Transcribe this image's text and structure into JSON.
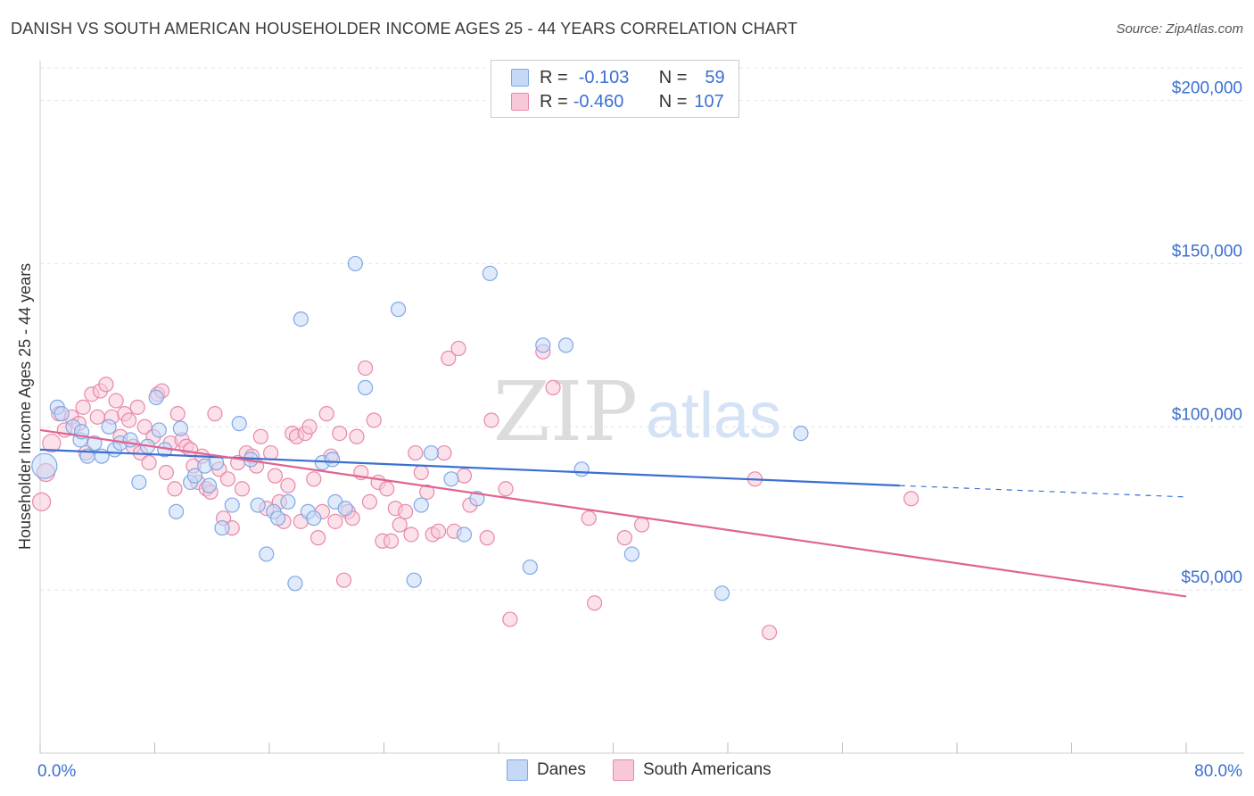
{
  "title": "DANISH VS SOUTH AMERICAN HOUSEHOLDER INCOME AGES 25 - 44 YEARS CORRELATION CHART",
  "source": "Source: ZipAtlas.com",
  "watermark": {
    "zip": "ZIP",
    "atlas": "atlas"
  },
  "legend": {
    "rows": [
      {
        "r_label": "R =",
        "r_value": "-0.103",
        "n_label": "N =",
        "n_value": "59",
        "color": "#7fa8e6",
        "fill": "#c5d8f5"
      },
      {
        "r_label": "R =",
        "r_value": "-0.460",
        "n_label": "N =",
        "n_value": "107",
        "color": "#e888a8",
        "fill": "#f8c8d8"
      }
    ]
  },
  "bottom_legend": [
    {
      "label": "Danes",
      "color": "#7fa8e6",
      "fill": "#c5d8f5"
    },
    {
      "label": "South Americans",
      "color": "#e888a8",
      "fill": "#f8c8d8"
    }
  ],
  "chart_data": {
    "type": "scatter",
    "title": "DANISH VS SOUTH AMERICAN HOUSEHOLDER INCOME AGES 25 - 44 YEARS CORRELATION CHART",
    "xlabel": "",
    "ylabel": "Householder Income Ages 25 - 44 years",
    "xlim": [
      0,
      80
    ],
    "ylim": [
      0,
      210000
    ],
    "x_tick_labels": [
      "0.0%",
      "80.0%"
    ],
    "y_ticks": [
      50000,
      100000,
      150000,
      200000
    ],
    "y_tick_labels": [
      "$50,000",
      "$100,000",
      "$150,000",
      "$200,000"
    ],
    "grid": true,
    "legend_position": "top-center",
    "series": [
      {
        "name": "Danes",
        "color": "#3b6fd1",
        "point_stroke": "#7fa8e6",
        "point_fill": "#c5d8f5",
        "trend": {
          "x": [
            0,
            60,
            80
          ],
          "y": [
            93000,
            82000,
            78500
          ],
          "solid_until": 60
        },
        "points": [
          [
            0.3,
            88000,
            14
          ],
          [
            1.2,
            106000,
            8
          ],
          [
            1.5,
            104000,
            8
          ],
          [
            2.3,
            100000,
            8
          ],
          [
            2.8,
            96000,
            8
          ],
          [
            2.9,
            98500,
            8
          ],
          [
            3.3,
            91000,
            8
          ],
          [
            3.8,
            95000,
            8
          ],
          [
            4.3,
            91000,
            8
          ],
          [
            4.8,
            100000,
            8
          ],
          [
            5.2,
            93000,
            8
          ],
          [
            5.6,
            95000,
            8
          ],
          [
            6.3,
            96000,
            8
          ],
          [
            6.9,
            83000,
            8
          ],
          [
            7.5,
            94000,
            8
          ],
          [
            8.1,
            109000,
            8
          ],
          [
            8.3,
            99000,
            8
          ],
          [
            8.7,
            93000,
            8
          ],
          [
            9.5,
            74000,
            8
          ],
          [
            9.8,
            99500,
            8
          ],
          [
            10.5,
            83000,
            8
          ],
          [
            10.8,
            85000,
            8
          ],
          [
            11.5,
            88000,
            8
          ],
          [
            11.8,
            82000,
            8
          ],
          [
            12.3,
            89000,
            8
          ],
          [
            12.7,
            69000,
            8
          ],
          [
            13.4,
            76000,
            8
          ],
          [
            13.9,
            101000,
            8
          ],
          [
            14.7,
            90000,
            8
          ],
          [
            15.2,
            76000,
            8
          ],
          [
            15.8,
            61000,
            8
          ],
          [
            16.3,
            74000,
            8
          ],
          [
            16.6,
            72000,
            8
          ],
          [
            17.3,
            77000,
            8
          ],
          [
            17.8,
            52000,
            8
          ],
          [
            18.2,
            133000,
            8
          ],
          [
            18.7,
            74000,
            8
          ],
          [
            19.1,
            72000,
            8
          ],
          [
            19.7,
            89000,
            8
          ],
          [
            20.4,
            90000,
            8
          ],
          [
            20.6,
            77000,
            8
          ],
          [
            21.3,
            75000,
            8
          ],
          [
            22.0,
            150000,
            8
          ],
          [
            22.7,
            112000,
            8
          ],
          [
            25.0,
            136000,
            8
          ],
          [
            26.1,
            53000,
            8
          ],
          [
            26.6,
            76000,
            8
          ],
          [
            27.3,
            92000,
            8
          ],
          [
            28.7,
            84000,
            8
          ],
          [
            29.6,
            67000,
            8
          ],
          [
            30.5,
            78000,
            8
          ],
          [
            31.4,
            147000,
            8
          ],
          [
            34.2,
            57000,
            8
          ],
          [
            35.1,
            125000,
            8
          ],
          [
            36.7,
            125000,
            8
          ],
          [
            37.8,
            87000,
            8
          ],
          [
            41.3,
            61000,
            8
          ],
          [
            47.6,
            49000,
            8
          ],
          [
            53.1,
            98000,
            8
          ]
        ]
      },
      {
        "name": "South Americans",
        "color": "#e0648e",
        "point_stroke": "#e888a8",
        "point_fill": "#f8c8d8",
        "trend": {
          "x": [
            0,
            80
          ],
          "y": [
            99000,
            48000
          ],
          "solid_until": 80
        },
        "points": [
          [
            0.1,
            77000,
            10
          ],
          [
            0.4,
            86000,
            10
          ],
          [
            0.8,
            95000,
            10
          ],
          [
            1.3,
            104000,
            8
          ],
          [
            1.7,
            99000,
            8
          ],
          [
            2.2,
            103000,
            8
          ],
          [
            2.7,
            101000,
            8
          ],
          [
            3.0,
            106000,
            8
          ],
          [
            3.2,
            92000,
            8
          ],
          [
            3.6,
            110000,
            8
          ],
          [
            4.0,
            103000,
            8
          ],
          [
            4.2,
            111000,
            8
          ],
          [
            4.6,
            113000,
            8
          ],
          [
            5.0,
            103000,
            8
          ],
          [
            5.3,
            108000,
            8
          ],
          [
            5.6,
            97000,
            8
          ],
          [
            5.9,
            104000,
            8
          ],
          [
            6.2,
            102000,
            8
          ],
          [
            6.5,
            94000,
            8
          ],
          [
            6.8,
            106000,
            8
          ],
          [
            7.0,
            92000,
            8
          ],
          [
            7.3,
            100000,
            8
          ],
          [
            7.6,
            89000,
            8
          ],
          [
            7.9,
            97000,
            8
          ],
          [
            8.2,
            110000,
            8
          ],
          [
            8.5,
            111000,
            8
          ],
          [
            8.8,
            86000,
            8
          ],
          [
            9.1,
            95000,
            8
          ],
          [
            9.4,
            81000,
            8
          ],
          [
            9.6,
            104000,
            8
          ],
          [
            9.9,
            96000,
            8
          ],
          [
            10.2,
            94000,
            8
          ],
          [
            10.5,
            93000,
            8
          ],
          [
            10.7,
            88000,
            8
          ],
          [
            11.0,
            83000,
            8
          ],
          [
            11.3,
            91000,
            8
          ],
          [
            11.6,
            81000,
            8
          ],
          [
            11.9,
            80000,
            8
          ],
          [
            12.2,
            104000,
            8
          ],
          [
            12.5,
            87000,
            8
          ],
          [
            12.8,
            72000,
            8
          ],
          [
            13.1,
            84000,
            8
          ],
          [
            13.4,
            69000,
            8
          ],
          [
            13.8,
            89000,
            8
          ],
          [
            14.1,
            81000,
            8
          ],
          [
            14.4,
            92000,
            8
          ],
          [
            14.8,
            91000,
            8
          ],
          [
            15.1,
            88000,
            8
          ],
          [
            15.4,
            97000,
            8
          ],
          [
            15.8,
            75000,
            8
          ],
          [
            16.1,
            92000,
            8
          ],
          [
            16.4,
            85000,
            8
          ],
          [
            16.7,
            77000,
            8
          ],
          [
            17.0,
            71000,
            8
          ],
          [
            17.3,
            82000,
            8
          ],
          [
            17.6,
            98000,
            8
          ],
          [
            17.9,
            97000,
            8
          ],
          [
            18.2,
            71000,
            8
          ],
          [
            18.5,
            98000,
            8
          ],
          [
            18.8,
            100000,
            8
          ],
          [
            19.1,
            84000,
            8
          ],
          [
            19.4,
            66000,
            8
          ],
          [
            19.7,
            74000,
            8
          ],
          [
            20.0,
            104000,
            8
          ],
          [
            20.3,
            91000,
            8
          ],
          [
            20.6,
            71000,
            8
          ],
          [
            20.9,
            98000,
            8
          ],
          [
            21.2,
            53000,
            8
          ],
          [
            21.5,
            74000,
            8
          ],
          [
            21.8,
            72000,
            8
          ],
          [
            22.1,
            97000,
            8
          ],
          [
            22.4,
            86000,
            8
          ],
          [
            22.7,
            118000,
            8
          ],
          [
            23.0,
            77000,
            8
          ],
          [
            23.3,
            102000,
            8
          ],
          [
            23.6,
            83000,
            8
          ],
          [
            23.9,
            65000,
            8
          ],
          [
            24.2,
            81000,
            8
          ],
          [
            24.5,
            65000,
            8
          ],
          [
            24.8,
            75000,
            8
          ],
          [
            25.1,
            70000,
            8
          ],
          [
            25.5,
            74000,
            8
          ],
          [
            25.9,
            67000,
            8
          ],
          [
            26.2,
            92000,
            8
          ],
          [
            26.6,
            86000,
            8
          ],
          [
            27.0,
            80000,
            8
          ],
          [
            27.4,
            67000,
            8
          ],
          [
            27.8,
            68000,
            8
          ],
          [
            28.2,
            92000,
            8
          ],
          [
            28.5,
            121000,
            8
          ],
          [
            28.9,
            68000,
            8
          ],
          [
            29.2,
            124000,
            8
          ],
          [
            29.6,
            85000,
            8
          ],
          [
            30.0,
            76000,
            8
          ],
          [
            31.2,
            66000,
            8
          ],
          [
            31.5,
            102000,
            8
          ],
          [
            32.5,
            81000,
            8
          ],
          [
            32.8,
            41000,
            8
          ],
          [
            35.1,
            123000,
            8
          ],
          [
            35.8,
            112000,
            8
          ],
          [
            38.3,
            72000,
            8
          ],
          [
            38.7,
            46000,
            8
          ],
          [
            40.8,
            66000,
            8
          ],
          [
            42.0,
            70000,
            8
          ],
          [
            49.9,
            84000,
            8
          ],
          [
            50.9,
            37000,
            8
          ],
          [
            60.8,
            78000,
            8
          ]
        ]
      }
    ]
  }
}
